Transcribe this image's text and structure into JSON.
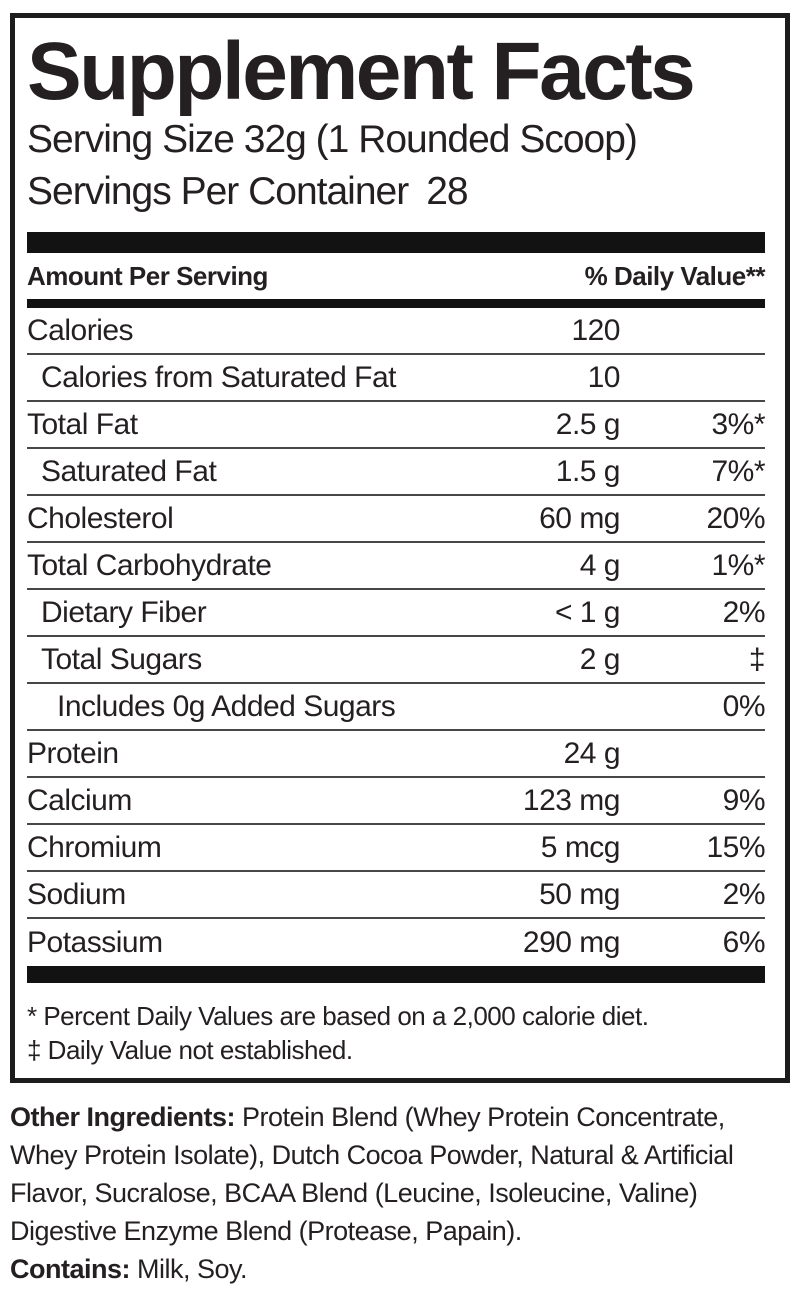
{
  "panel": {
    "title": "Supplement Facts",
    "serving_size": "Serving Size 32g (1 Rounded Scoop)",
    "servings_label": "Servings Per Container",
    "servings_value": "28",
    "columns": {
      "left": "Amount Per Serving",
      "right": "% Daily Value**"
    },
    "rows": [
      {
        "label": "Calories",
        "amount": "120",
        "dv": "",
        "indent": 0
      },
      {
        "label": "Calories from Saturated Fat",
        "amount": "10",
        "dv": "",
        "indent": 1
      },
      {
        "label": "Total Fat",
        "amount": "2.5 g",
        "dv": "3%*",
        "indent": 0
      },
      {
        "label": "Saturated Fat",
        "amount": "1.5 g",
        "dv": "7%*",
        "indent": 1
      },
      {
        "label": "Cholesterol",
        "amount": "60 mg",
        "dv": "20%",
        "indent": 0
      },
      {
        "label": "Total Carbohydrate",
        "amount": "4 g",
        "dv": "1%*",
        "indent": 0
      },
      {
        "label": "Dietary Fiber",
        "amount": "< 1 g",
        "dv": "2%",
        "indent": 1
      },
      {
        "label": "Total Sugars",
        "amount": "2 g",
        "dv": "‡",
        "indent": 1
      },
      {
        "label": "Includes 0g Added Sugars",
        "amount": "",
        "dv": "0%",
        "indent": 2
      },
      {
        "label": "Protein",
        "amount": "24 g",
        "dv": "",
        "indent": 0
      },
      {
        "label": "Calcium",
        "amount": "123 mg",
        "dv": "9%",
        "indent": 0
      },
      {
        "label": "Chromium",
        "amount": "5 mcg",
        "dv": "15%",
        "indent": 0
      },
      {
        "label": "Sodium",
        "amount": "50 mg",
        "dv": "2%",
        "indent": 0
      },
      {
        "label": "Potassium",
        "amount": "290 mg",
        "dv": "6%",
        "indent": 0
      }
    ],
    "footnotes": [
      "* Percent Daily Values are based on a 2,000 calorie diet.",
      "‡ Daily Value not established."
    ]
  },
  "other_ingredients": {
    "label": "Other Ingredients:",
    "text": " Protein Blend (Whey Protein Concentrate, Whey Protein Isolate), Dutch Cocoa Powder, Natural & Artificial Flavor, Sucralose, BCAA Blend (Leucine, Isoleucine, Valine) Digestive Enzyme Blend (Protease, Papain)."
  },
  "contains": {
    "label": "Contains:",
    "text": " Milk, Soy."
  },
  "colors": {
    "text": "#241f20",
    "bar": "#121212",
    "divider": "#474747",
    "border": "#1c1c1c"
  }
}
